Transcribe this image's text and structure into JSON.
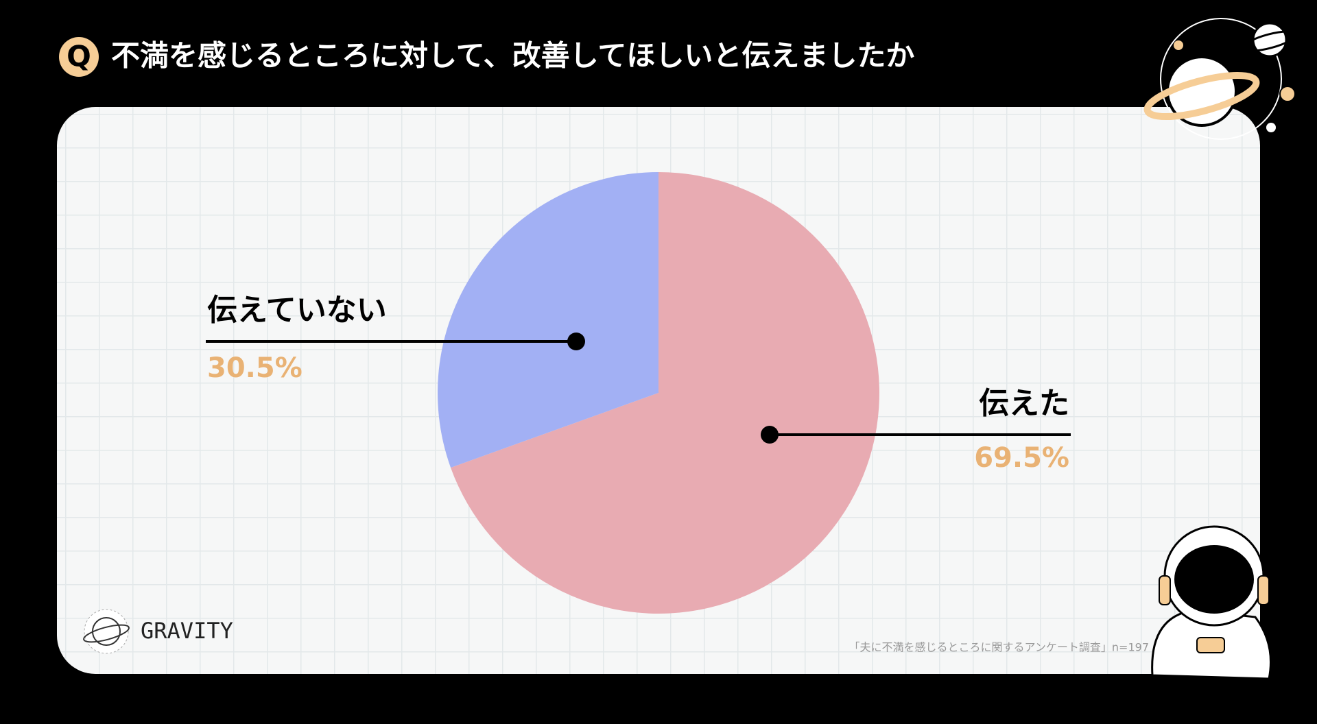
{
  "question_mark": "Q",
  "brand": "GRAVITY",
  "chart_data": {
    "type": "pie",
    "title": "不満を感じるところに対して、改善してほしいと伝えましたか",
    "categories": [
      "伝えた",
      "伝えていない"
    ],
    "values": [
      69.5,
      30.5
    ],
    "value_labels": [
      "69.5%",
      "30.5%"
    ],
    "colors": [
      "#e8abb2",
      "#a2b0f4"
    ],
    "note": "「夫に不満を感じるところに関するアンケート調査」n=197"
  }
}
